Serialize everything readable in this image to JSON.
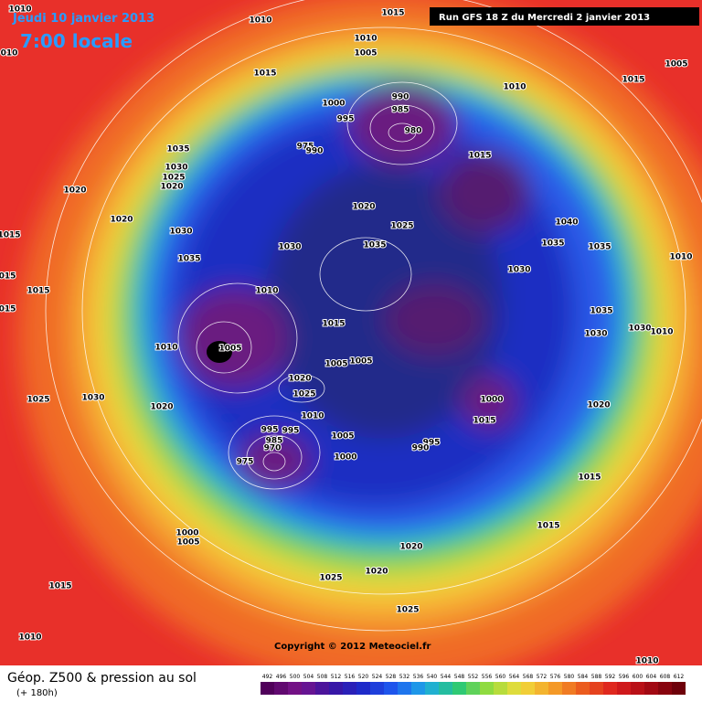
{
  "header": {
    "date": "Jeudi 10 janvier 2013",
    "time": "7:00 locale",
    "run": "Run GFS 18 Z du Mercredi 2 janvier 2013"
  },
  "copyright": "Copyright © 2012 Meteociel.fr",
  "footer": {
    "title": "Géop. Z500 & pression au sol",
    "lead": "(+ 180h)"
  },
  "legend": {
    "values": [
      492,
      496,
      500,
      504,
      508,
      512,
      516,
      520,
      524,
      528,
      532,
      536,
      540,
      544,
      548,
      552,
      556,
      560,
      564,
      568,
      572,
      576,
      580,
      584,
      588,
      592,
      596,
      600,
      604,
      608,
      612
    ]
  },
  "isobars": [
    1010,
    "010",
    1010,
    1015,
    1010,
    1005,
    1015,
    1005,
    1015,
    1010,
    990,
    985,
    980,
    1000,
    995,
    975,
    990,
    1035,
    1030,
    1025,
    1020,
    1020,
    1020,
    1020,
    1025,
    1015,
    1040,
    1030,
    1015,
    1030,
    1035,
    1035,
    1035,
    1010,
    1035,
    1030,
    "015",
    1010,
    1015,
    "015",
    1035,
    1015,
    1030,
    1010,
    1030,
    1010,
    1005,
    1005,
    1005,
    1020,
    1025,
    1025,
    1030,
    1000,
    1020,
    1020,
    1010,
    995,
    995,
    1015,
    1005,
    995,
    990,
    985,
    970,
    975,
    1000,
    1015,
    1015,
    1000,
    1005,
    1020,
    1020,
    1025,
    1025,
    1015,
    1010,
    1010
  ]
}
